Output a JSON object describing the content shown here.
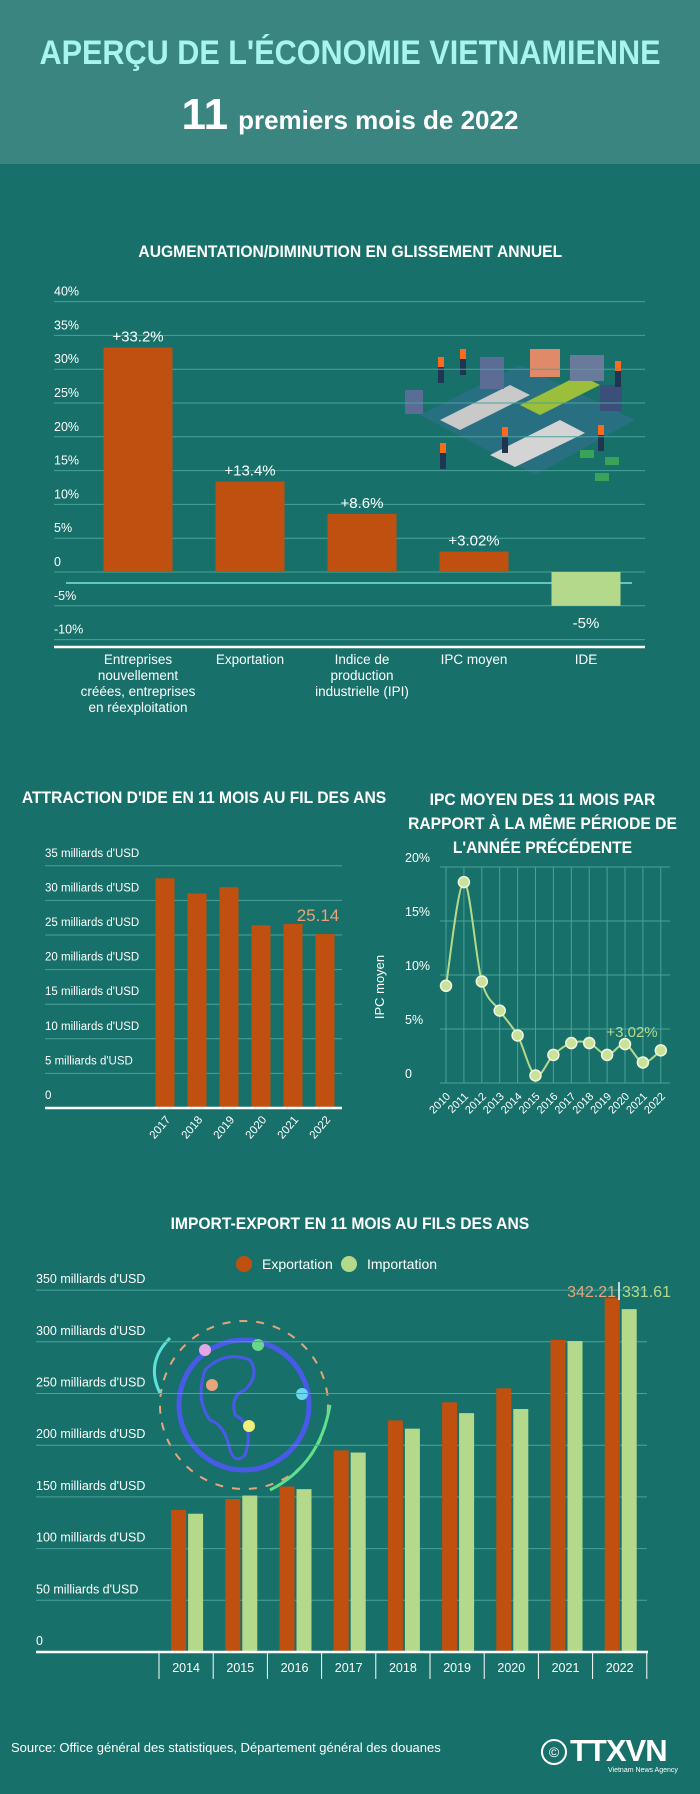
{
  "header": {
    "title": "APERÇU DE L'ÉCONOMIE VIETNAMIENNE",
    "subtitle_number": "11",
    "subtitle_text": "premiers mois de 2022"
  },
  "colors": {
    "header_bg": "#3a8580",
    "page_bg": "#17706a",
    "title": "#a6f5ef",
    "orange": "#c0500f",
    "green": "#b5d98a",
    "highlight_orange": "#e8a47a"
  },
  "source": "Source: Office général des statistiques, Département général des douanes",
  "logo": {
    "mark": "TTXVN",
    "tagline": "Vietnam News Agency",
    "copyright": "©"
  },
  "chart_data": [
    {
      "id": "yoy",
      "type": "bar",
      "title": "AUGMENTATION/DIMINUTION EN GLISSEMENT ANNUEL",
      "categories": [
        "Entreprises nouvellement créées, entreprises en réexploitation",
        "Exportation",
        "Indice de production industrielle (IPI)",
        "IPC moyen",
        "IDE"
      ],
      "values": [
        33.2,
        13.4,
        8.6,
        3.02,
        -5
      ],
      "value_labels": [
        "+33.2%",
        "+13.4%",
        "+8.6%",
        "+3.02%",
        "-5%"
      ],
      "bar_colors": [
        "#c0500f",
        "#c0500f",
        "#c0500f",
        "#c0500f",
        "#b5d98a"
      ],
      "yticks": [
        "40%",
        "35%",
        "30%",
        "25%",
        "20%",
        "15%",
        "10%",
        "5%",
        "0",
        "-5%",
        "-10%"
      ],
      "ylim": [
        -10,
        40
      ],
      "grid": true,
      "illustration": "factory-icon"
    },
    {
      "id": "fdi",
      "type": "bar",
      "title": "ATTRACTION D'IDE EN 11 MOIS AU FIL DES ANS",
      "categories": [
        "2017",
        "2018",
        "2019",
        "2020",
        "2021",
        "2022"
      ],
      "values": [
        33.2,
        31.0,
        31.9,
        26.4,
        26.6,
        25.14
      ],
      "highlight_label": "25.14",
      "yticks": [
        "0",
        "5 milliards d'USD",
        "10 milliards d'USD",
        "15 milliards d'USD",
        "20 milliards d'USD",
        "25 milliards d'USD",
        "30 milliards d'USD",
        "35 milliards d'USD"
      ],
      "ylim": [
        0,
        35
      ],
      "grid": true
    },
    {
      "id": "cpi",
      "type": "line",
      "title": "IPC MOYEN DES 11 MOIS PAR RAPPORT À LA MÊME PÉRIODE DE L'ANNÉE PRÉCÉDENTE",
      "ylabel": "IPC moyen",
      "x": [
        "2010",
        "2011",
        "2012",
        "2013",
        "2014",
        "2015",
        "2016",
        "2017",
        "2018",
        "2019",
        "2020",
        "2021",
        "2022"
      ],
      "values": [
        9.0,
        18.6,
        9.4,
        6.7,
        4.4,
        0.7,
        2.6,
        3.7,
        3.7,
        2.6,
        3.6,
        1.9,
        3.02
      ],
      "highlight_label": "+3.02%",
      "yticks": [
        "0",
        "5%",
        "10%",
        "15%",
        "20%"
      ],
      "ylim": [
        0,
        20
      ],
      "grid": true
    },
    {
      "id": "trade",
      "type": "bar",
      "title": "IMPORT-EXPORT EN 11 MOIS AU FILS DES ANS",
      "categories": [
        "2014",
        "2015",
        "2016",
        "2017",
        "2018",
        "2019",
        "2020",
        "2021",
        "2022"
      ],
      "series": [
        {
          "name": "Exportation",
          "color": "#c0500f",
          "values": [
            137.4,
            148,
            160,
            195,
            224,
            241.5,
            255,
            301.8,
            342.21
          ]
        },
        {
          "name": "Importation",
          "color": "#b5d98a",
          "values": [
            133.7,
            151.3,
            157.5,
            192.9,
            216,
            231,
            235,
            300.7,
            331.61
          ]
        }
      ],
      "highlight_labels": [
        "342.21",
        "331.61"
      ],
      "yticks": [
        "0",
        "50 milliards d'USD",
        "100 milliards d'USD",
        "150 milliards d'USD",
        "200 milliards d'USD",
        "250 milliards d'USD",
        "300 milliards d'USD",
        "350 milliards d'USD"
      ],
      "ylim": [
        0,
        350
      ],
      "legend": "top",
      "grid": true,
      "illustration": "globe-icon"
    }
  ]
}
